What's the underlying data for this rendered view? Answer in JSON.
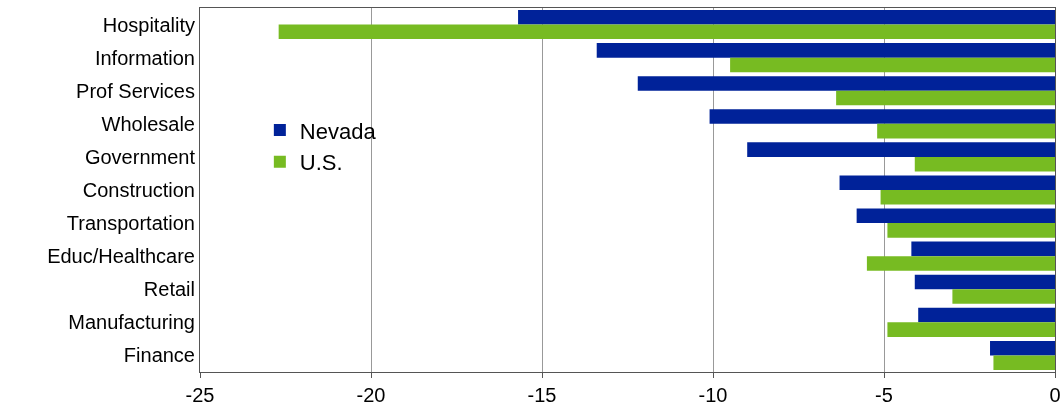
{
  "chart_data": {
    "type": "bar",
    "orientation": "horizontal",
    "categories": [
      "Hospitality",
      "Information",
      "Prof Services",
      "Wholesale",
      "Government",
      "Construction",
      "Transportation",
      "Educ/Healthcare",
      "Retail",
      "Manufacturing",
      "Finance"
    ],
    "series": [
      {
        "name": "Nevada",
        "color": "#002299",
        "values": [
          -15.7,
          -13.4,
          -12.2,
          -10.1,
          -9.0,
          -6.3,
          -5.8,
          -4.2,
          -4.1,
          -4.0,
          -1.9
        ]
      },
      {
        "name": "U.S.",
        "color": "#77bb22",
        "values": [
          -22.7,
          -9.5,
          -6.4,
          -5.2,
          -4.1,
          -5.1,
          -4.9,
          -5.5,
          -3.0,
          -4.9,
          -1.8
        ]
      }
    ],
    "xlim": [
      -25,
      0
    ],
    "xticks": [
      -25,
      -20,
      -15,
      -10,
      -5,
      0
    ],
    "grid": "x",
    "legend": "left"
  }
}
